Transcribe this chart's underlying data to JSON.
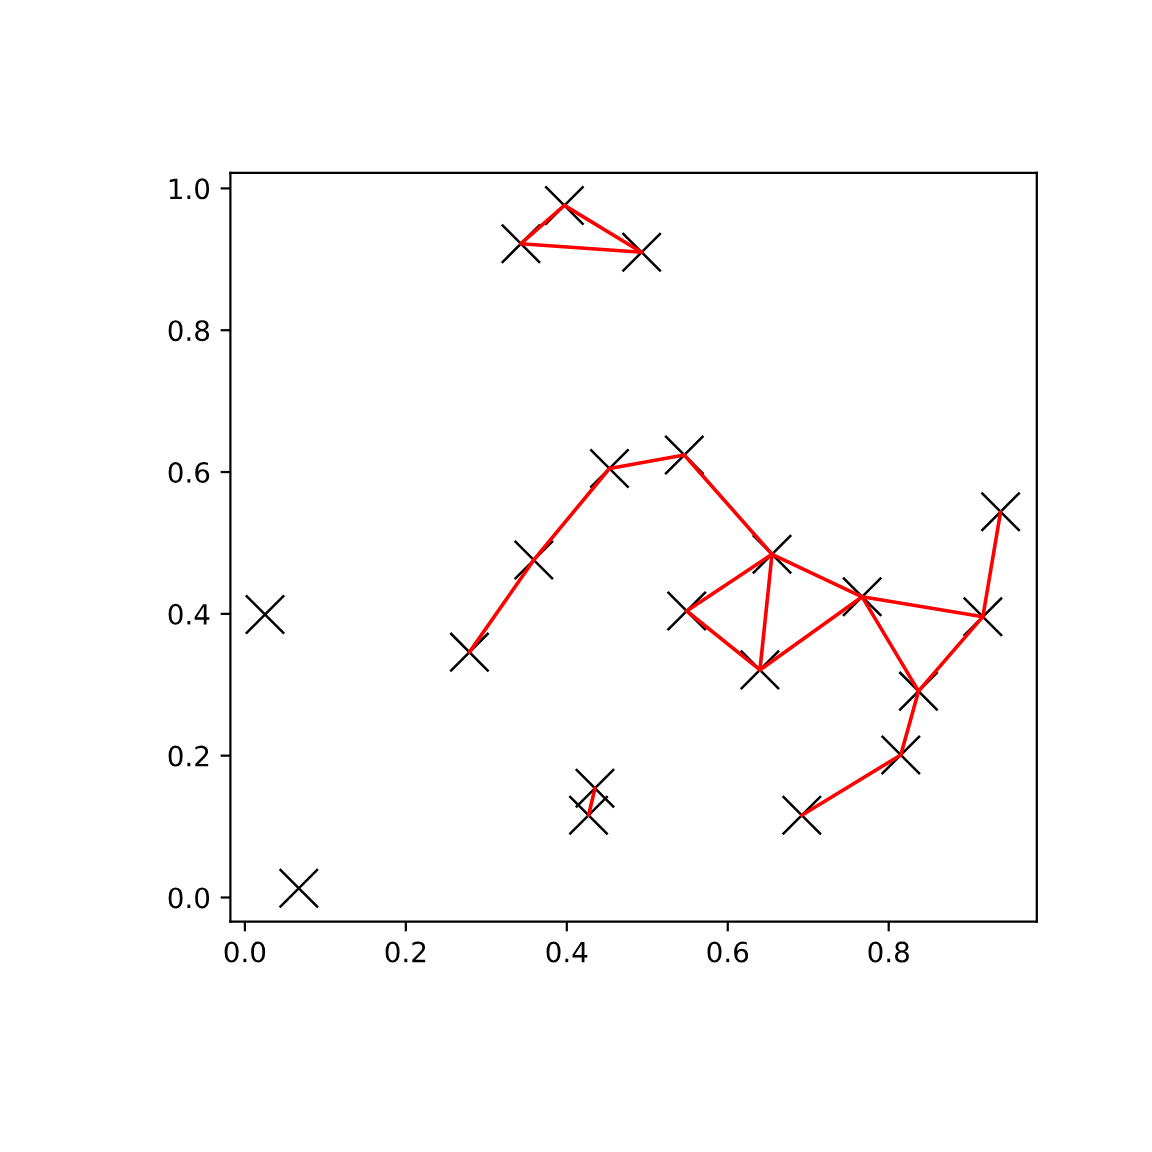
{
  "chart_data": {
    "type": "scatter",
    "xlim": [
      -0.018,
      0.984
    ],
    "ylim": [
      -0.034,
      1.022
    ],
    "xticks": [
      {
        "value": 0,
        "label": "0.0"
      },
      0.2,
      0.4,
      0.6,
      0.8
    ],
    "yticks": [
      {
        "value": 0,
        "label": "0.0"
      },
      0.2,
      0.4,
      0.6,
      0.8,
      {
        "value": 1,
        "label": "1.0"
      }
    ],
    "series": [
      {
        "color": "#000000",
        "marker": "cross",
        "x": [
          0.025,
          0.067,
          0.279,
          0.359,
          0.453,
          0.546,
          0.655,
          0.549,
          0.64,
          0.767,
          0.837,
          0.917,
          0.939,
          0.815,
          0.692,
          0.435,
          0.427,
          0.397,
          0.343,
          0.493
        ],
        "values": [
          0.399,
          0.013,
          0.346,
          0.476,
          0.605,
          0.624,
          0.484,
          0.404,
          0.321,
          0.424,
          0.291,
          0.396,
          0.544,
          0.201,
          0.116,
          0.154,
          0.116,
          0.976,
          0.922,
          0.91
        ]
      },
      {
        "type": "line",
        "color": "#ff0000",
        "x": [
          0.343,
          0.397
        ],
        "values": [
          0.922,
          0.976
        ]
      },
      {
        "type": "line",
        "color": "#ff0000",
        "x": [
          0.397,
          0.493
        ],
        "values": [
          0.976,
          0.91
        ]
      },
      {
        "type": "line",
        "color": "#ff0000",
        "x": [
          0.343,
          0.493
        ],
        "values": [
          0.922,
          0.91
        ]
      },
      {
        "type": "line",
        "color": "#ff0000",
        "x": [
          0.279,
          0.359
        ],
        "values": [
          0.346,
          0.476
        ]
      },
      {
        "type": "line",
        "color": "#ff0000",
        "x": [
          0.359,
          0.453
        ],
        "values": [
          0.476,
          0.605
        ]
      },
      {
        "type": "line",
        "color": "#ff0000",
        "x": [
          0.453,
          0.546
        ],
        "values": [
          0.605,
          0.624
        ]
      },
      {
        "type": "line",
        "color": "#ff0000",
        "x": [
          0.546,
          0.655
        ],
        "values": [
          0.624,
          0.484
        ]
      },
      {
        "type": "line",
        "color": "#ff0000",
        "x": [
          0.655,
          0.549
        ],
        "values": [
          0.484,
          0.404
        ]
      },
      {
        "type": "line",
        "color": "#ff0000",
        "x": [
          0.549,
          0.64
        ],
        "values": [
          0.404,
          0.321
        ]
      },
      {
        "type": "line",
        "color": "#ff0000",
        "x": [
          0.655,
          0.64
        ],
        "values": [
          0.484,
          0.321
        ]
      },
      {
        "type": "line",
        "color": "#ff0000",
        "x": [
          0.64,
          0.767
        ],
        "values": [
          0.321,
          0.424
        ]
      },
      {
        "type": "line",
        "color": "#ff0000",
        "x": [
          0.655,
          0.767
        ],
        "values": [
          0.484,
          0.424
        ]
      },
      {
        "type": "line",
        "color": "#ff0000",
        "x": [
          0.767,
          0.837
        ],
        "values": [
          0.424,
          0.291
        ]
      },
      {
        "type": "line",
        "color": "#ff0000",
        "x": [
          0.767,
          0.917
        ],
        "values": [
          0.424,
          0.396
        ]
      },
      {
        "type": "line",
        "color": "#ff0000",
        "x": [
          0.837,
          0.917
        ],
        "values": [
          0.291,
          0.396
        ]
      },
      {
        "type": "line",
        "color": "#ff0000",
        "x": [
          0.917,
          0.939
        ],
        "values": [
          0.396,
          0.544
        ]
      },
      {
        "type": "line",
        "color": "#ff0000",
        "x": [
          0.837,
          0.815
        ],
        "values": [
          0.291,
          0.201
        ]
      },
      {
        "type": "line",
        "color": "#ff0000",
        "x": [
          0.815,
          0.692
        ],
        "values": [
          0.201,
          0.116
        ]
      },
      {
        "type": "line",
        "color": "#ff0000",
        "x": [
          0.435,
          0.427
        ],
        "values": [
          0.154,
          0.116
        ]
      }
    ]
  }
}
